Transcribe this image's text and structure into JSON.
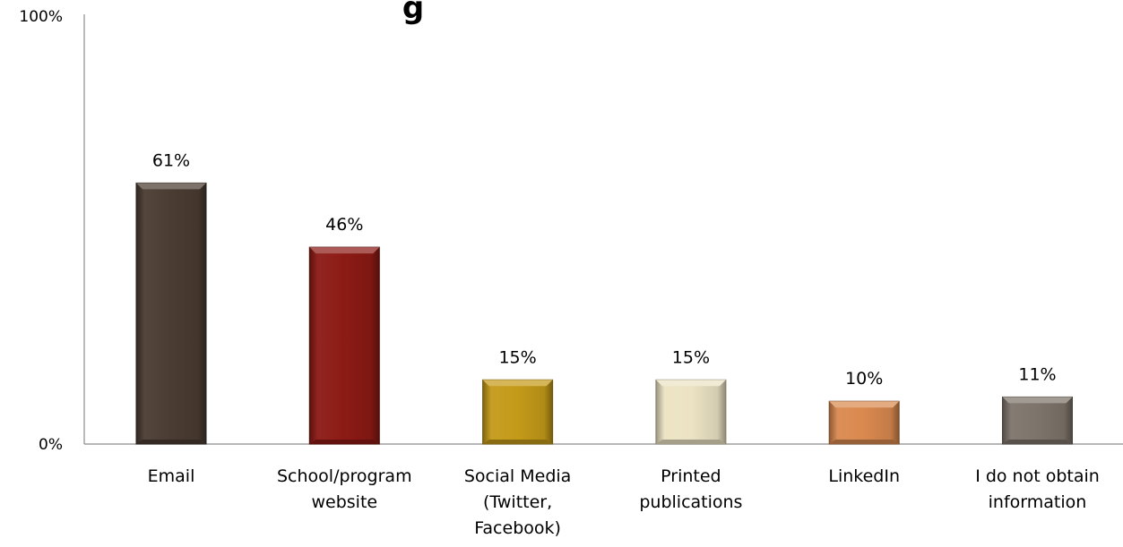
{
  "chart_data": {
    "type": "bar",
    "title": "g",
    "categories": [
      [
        "Email"
      ],
      [
        "School/program",
        "website"
      ],
      [
        "Social Media",
        "(Twitter,",
        "Facebook)"
      ],
      [
        "Printed",
        "publications"
      ],
      [
        "LinkedIn"
      ],
      [
        "I do not obtain",
        "information"
      ]
    ],
    "values": [
      61,
      46,
      15,
      15,
      10,
      11
    ],
    "data_labels": [
      "61%",
      "46%",
      "15%",
      "15%",
      "10%",
      "11%"
    ],
    "ylim": [
      0,
      100
    ],
    "y_ticks": [
      {
        "value": 0,
        "label": "0%"
      },
      {
        "value": 100,
        "label": "100%"
      }
    ],
    "xlabel": "",
    "ylabel": "",
    "grid": false,
    "legend": "none",
    "bar_colors": [
      "#4a3c32",
      "#8c1a14",
      "#c49a18",
      "#ece3c4",
      "#d9894f",
      "#7d746b"
    ]
  }
}
